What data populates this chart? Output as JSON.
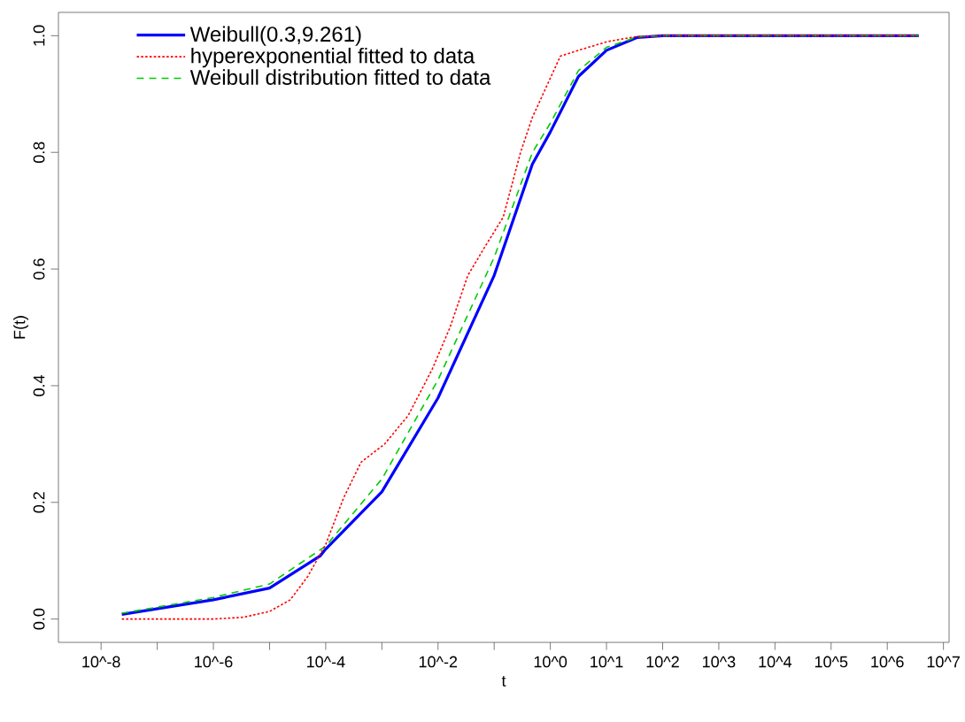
{
  "chart_data": {
    "type": "line",
    "xlabel": "t",
    "ylabel": "F(t)",
    "log": "x",
    "legend": "top left",
    "xlim": [
      1.74e-09,
      12600000.0
    ],
    "ylim": [
      -0.04,
      1.04
    ],
    "xticks": [
      {
        "value": 1e-08,
        "label": "10^-8"
      },
      {
        "value": 1e-07,
        "label": null
      },
      {
        "value": 1e-06,
        "label": "10^-6"
      },
      {
        "value": 1e-05,
        "label": null
      },
      {
        "value": 0.0001,
        "label": "10^-4"
      },
      {
        "value": 0.001,
        "label": null
      },
      {
        "value": 0.01,
        "label": "10^-2"
      },
      {
        "value": 0.1,
        "label": null
      },
      {
        "value": 1,
        "label": "10^0"
      },
      {
        "value": 10,
        "label": "10^1"
      },
      {
        "value": 100,
        "label": "10^2"
      },
      {
        "value": 1000,
        "label": "10^3"
      },
      {
        "value": 10000,
        "label": "10^4"
      },
      {
        "value": 100000,
        "label": "10^5"
      },
      {
        "value": 1000000,
        "label": "10^6"
      },
      {
        "value": 10000000,
        "label": "10^7"
      }
    ],
    "yticks": [
      {
        "value": 0,
        "label": "0.0"
      },
      {
        "value": 0.2,
        "label": "0.2"
      },
      {
        "value": 0.4,
        "label": "0.4"
      },
      {
        "value": 0.6,
        "label": "0.6"
      },
      {
        "value": 0.8,
        "label": "0.8"
      },
      {
        "value": 1,
        "label": "1.0"
      }
    ],
    "series": [
      {
        "name": "Weibull(0.3,9.261)",
        "color": "#0000ff",
        "line_style": "solid",
        "x": [
          2.34e-08,
          1e-06,
          1e-05,
          7.94e-05,
          0.0001,
          0.001,
          0.01,
          0.1,
          0.479,
          1,
          3.16,
          10,
          35.5,
          100,
          3630000.0
        ],
        "values": [
          0.008,
          0.033,
          0.053,
          0.108,
          0.12,
          0.218,
          0.379,
          0.589,
          0.78,
          0.835,
          0.93,
          0.975,
          0.997,
          1,
          1
        ]
      },
      {
        "name": "hyperexponential fitted to data",
        "color": "#ff0000",
        "line_style": "dotted",
        "x": [
          2.34e-08,
          1e-06,
          3.39e-06,
          1e-05,
          2.34e-05,
          4.79e-05,
          0.0001,
          0.000209,
          0.000427,
          0.00112,
          0.00295,
          0.00794,
          0.0162,
          0.0339,
          0.0692,
          0.145,
          0.295,
          0.479,
          1.51,
          3.16,
          10.5,
          31.6,
          100,
          3630000.0
        ],
        "values": [
          0,
          0,
          0.003,
          0.013,
          0.033,
          0.073,
          0.128,
          0.208,
          0.269,
          0.3,
          0.349,
          0.429,
          0.499,
          0.589,
          0.639,
          0.689,
          0.8,
          0.86,
          0.965,
          0.975,
          0.99,
          0.998,
          1,
          1
        ]
      },
      {
        "name": "Weibull distribution fitted to data",
        "color": "#00cc00",
        "line_style": "dashed",
        "x": [
          2.34e-08,
          1e-06,
          1e-05,
          0.0001,
          0.001,
          0.01,
          0.1,
          0.479,
          1,
          3.16,
          10,
          35.5,
          100,
          3630000.0
        ],
        "values": [
          0.01,
          0.037,
          0.06,
          0.125,
          0.24,
          0.41,
          0.62,
          0.8,
          0.85,
          0.94,
          0.98,
          0.998,
          1,
          1
        ]
      }
    ]
  }
}
